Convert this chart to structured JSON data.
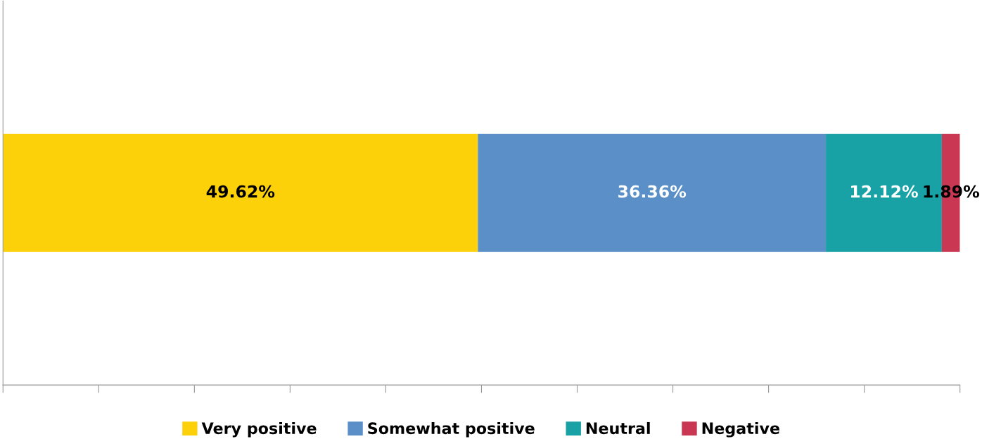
{
  "chart_data": {
    "type": "bar",
    "orientation": "horizontal",
    "stacked": true,
    "categories": [
      null
    ],
    "series": [
      {
        "name": "Very positive",
        "color": "#fcd10a",
        "values": [
          49.62
        ],
        "value_labels": [
          "49.62%"
        ]
      },
      {
        "name": "Somewhat positive",
        "color": "#5b8fc7",
        "values": [
          36.36
        ],
        "value_labels": [
          "36.36%"
        ]
      },
      {
        "name": "Neutral",
        "color": "#18a2a5",
        "values": [
          12.12
        ],
        "value_labels": [
          "12.12%"
        ]
      },
      {
        "name": "Negative",
        "color": "#c93753",
        "values": [
          1.89
        ],
        "value_labels": [
          "1.89%"
        ]
      }
    ],
    "grid": false,
    "legend": "bottom"
  }
}
